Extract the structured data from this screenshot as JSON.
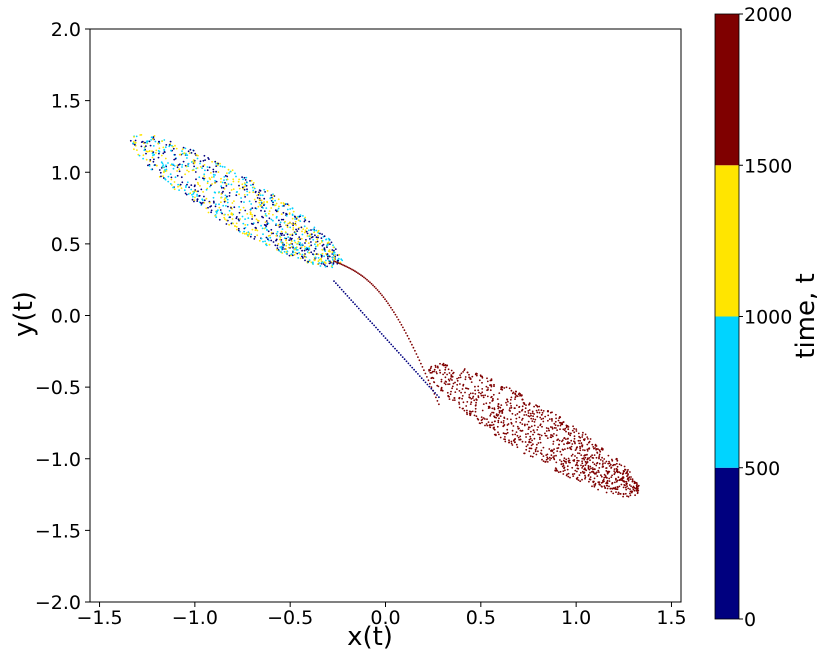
{
  "chart_data": {
    "type": "scatter",
    "title": "",
    "xlabel": "x(t)",
    "ylabel": "y(t)",
    "xlim": [
      -1.55,
      1.55
    ],
    "ylim": [
      -2.0,
      2.0
    ],
    "x_ticks": [
      -1.5,
      -1.0,
      -0.5,
      0.0,
      0.5,
      1.0,
      1.5
    ],
    "y_ticks": [
      -2.0,
      -1.5,
      -1.0,
      -0.5,
      0.0,
      0.5,
      1.0,
      1.5,
      2.0
    ],
    "x_tick_labels": [
      "−1.5",
      "−1.0",
      "−0.5",
      "0.0",
      "0.5",
      "1.0",
      "1.5"
    ],
    "y_tick_labels": [
      "−2.0",
      "−1.5",
      "−1.0",
      "−0.5",
      "0.0",
      "0.5",
      "1.0",
      "1.5",
      "2.0"
    ],
    "grid": false,
    "colorbar": {
      "label": "time, t",
      "min": 0,
      "max": 2000,
      "ticks": [
        0,
        500,
        1000,
        1500,
        2000
      ],
      "tick_labels": [
        "0",
        "500",
        "1000",
        "1500",
        "2000"
      ],
      "bands": [
        {
          "from": 0,
          "to": 500,
          "color": "#00007f"
        },
        {
          "from": 500,
          "to": 1000,
          "color": "#00d4ff"
        },
        {
          "from": 1000,
          "to": 1500,
          "color": "#ffe500"
        },
        {
          "from": 1500,
          "to": 2000,
          "color": "#7f0000"
        }
      ]
    },
    "series": [
      {
        "time_range": [
          0,
          500
        ],
        "color": "#00007f"
      },
      {
        "time_range": [
          500,
          1000
        ],
        "color": "#00d4ff"
      },
      {
        "time_range": [
          1000,
          1500
        ],
        "color": "#ffe500"
      },
      {
        "time_range": [
          1500,
          2000
        ],
        "color": "#7f0000"
      }
    ],
    "attractor_lobes": [
      {
        "center": [
          -0.8,
          0.82
        ],
        "active_bands": [
          0,
          1,
          2
        ]
      },
      {
        "center": [
          0.8,
          -0.82
        ],
        "active_bands": [
          3
        ]
      }
    ],
    "transition_path": {
      "from": [
        -0.27,
        0.38
      ],
      "to": [
        0.28,
        -0.57
      ],
      "band": 3
    }
  }
}
